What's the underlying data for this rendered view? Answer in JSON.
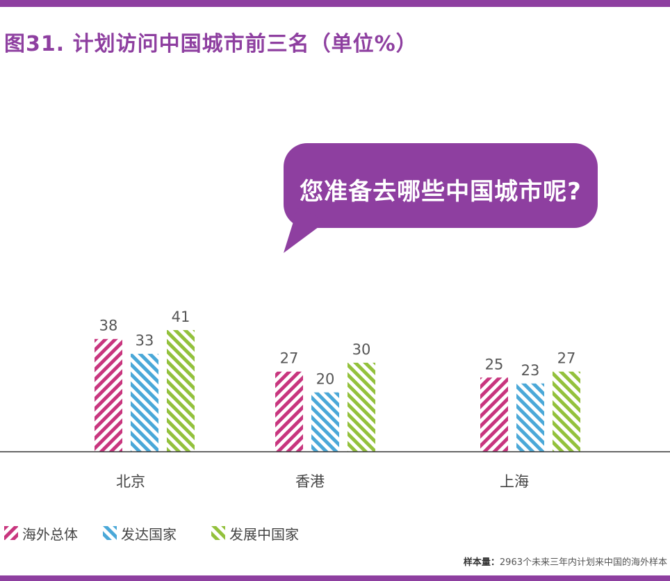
{
  "title": "图31. 计划访问中国城市前三名（单位%）",
  "callout": "您准备去哪些中国城市呢?",
  "footnote": {
    "label": "样本量：",
    "text": "2963个未来三年内计划来中国的海外样本"
  },
  "colors": {
    "accent": "#8e3fa0",
    "series": [
      "#c8357e",
      "#4aa8d8",
      "#93c13c"
    ]
  },
  "chart_data": {
    "type": "bar",
    "categories": [
      "北京",
      "香港",
      "上海"
    ],
    "series": [
      {
        "name": "海外总体",
        "values": [
          38,
          27,
          25
        ]
      },
      {
        "name": "发达国家",
        "values": [
          33,
          20,
          23
        ]
      },
      {
        "name": "发展中国家",
        "values": [
          41,
          30,
          27
        ]
      }
    ],
    "title": "图31. 计划访问中国城市前三名（单位%）",
    "ylim": [
      0,
      45
    ],
    "grid": false,
    "legend": "bottom-left"
  }
}
